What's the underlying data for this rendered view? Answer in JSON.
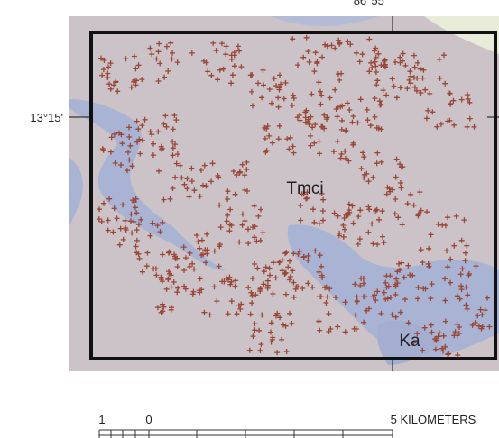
{
  "map": {
    "longitude_label": "86°55'",
    "latitude_label": "13°15'",
    "units": [
      "Tmci",
      "Ka"
    ],
    "scale_bar": {
      "labels": [
        "1",
        "0",
        "5 KILOMETERS"
      ]
    }
  }
}
